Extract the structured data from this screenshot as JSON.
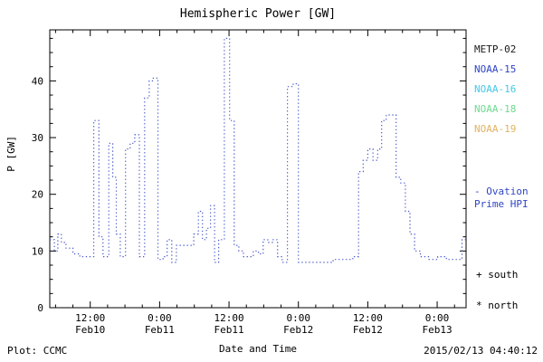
{
  "title": "Hemispheric Power [GW]",
  "axes": {
    "ylabel": "P [GW]",
    "xlabel": "Date and Time"
  },
  "footer": {
    "plot_credit": "Plot: CCMC",
    "timestamp": "2015/02/13 04:40:12"
  },
  "legend": {
    "satellites": [
      {
        "label": "METP-02",
        "color": "#1a1a1a"
      },
      {
        "label": "NOAA-15",
        "color": "#2f45c5"
      },
      {
        "label": "NOAA-16",
        "color": "#45c8e8"
      },
      {
        "label": "NOAA-18",
        "color": "#6fd98f"
      },
      {
        "label": "NOAA-19",
        "color": "#e2b263"
      }
    ],
    "line_label_line1": "- Ovation",
    "line_label_line2": "Prime HPI",
    "line_label_color": "#2f45c5",
    "markers": [
      {
        "symbol": "+",
        "label": "south"
      },
      {
        "symbol": "*",
        "label": "north"
      }
    ]
  },
  "chart_data": {
    "type": "line",
    "step": true,
    "line_style": "dotted",
    "line_color": "#4758c8",
    "title": "Hemispheric Power [GW]",
    "xlabel": "Date and Time",
    "ylabel": "P [GW]",
    "xlim_hours_since_feb10_0000": [
      5,
      77
    ],
    "ylim": [
      0,
      49
    ],
    "x_ticks": [
      {
        "hour": 12,
        "time": "12:00",
        "date": "Feb10"
      },
      {
        "hour": 24,
        "time": "0:00",
        "date": "Feb11"
      },
      {
        "hour": 36,
        "time": "12:00",
        "date": "Feb11"
      },
      {
        "hour": 48,
        "time": "0:00",
        "date": "Feb12"
      },
      {
        "hour": 60,
        "time": "12:00",
        "date": "Feb12"
      },
      {
        "hour": 72,
        "time": "0:00",
        "date": "Feb13"
      }
    ],
    "x_minor_step_hours": 3,
    "y_ticks": [
      0,
      10,
      20,
      30,
      40
    ],
    "y_minor_step": 2.5,
    "legend_position": "right",
    "grid": false,
    "series": [
      {
        "name": "Ovation Prime HPI",
        "points_hour_gw": [
          [
            5,
            12
          ],
          [
            5.8,
            10
          ],
          [
            6.4,
            13
          ],
          [
            7,
            11.5
          ],
          [
            7.8,
            10.5
          ],
          [
            9,
            9.5
          ],
          [
            10.2,
            9
          ],
          [
            12.6,
            33
          ],
          [
            13.5,
            12.5
          ],
          [
            14.2,
            9
          ],
          [
            15.2,
            29
          ],
          [
            15.9,
            23
          ],
          [
            16.5,
            13
          ],
          [
            17.2,
            9
          ],
          [
            18.1,
            28
          ],
          [
            18.9,
            29
          ],
          [
            19.7,
            30.5
          ],
          [
            20.5,
            9
          ],
          [
            21.4,
            37
          ],
          [
            22.2,
            40
          ],
          [
            22.9,
            40.5
          ],
          [
            23.7,
            8.5
          ],
          [
            24.6,
            9
          ],
          [
            25.3,
            12
          ],
          [
            26.1,
            8
          ],
          [
            26.9,
            11
          ],
          [
            28.4,
            11
          ],
          [
            29.9,
            13
          ],
          [
            30.7,
            17
          ],
          [
            31.4,
            12
          ],
          [
            32.1,
            14
          ],
          [
            32.8,
            18
          ],
          [
            33.5,
            8
          ],
          [
            34.2,
            12
          ],
          [
            35.2,
            47.5
          ],
          [
            36.1,
            33
          ],
          [
            36.9,
            11
          ],
          [
            37.7,
            10
          ],
          [
            38.5,
            9
          ],
          [
            39.4,
            9
          ],
          [
            40.2,
            10
          ],
          [
            41.1,
            9.5
          ],
          [
            41.9,
            12
          ],
          [
            42.7,
            11.5
          ],
          [
            43.5,
            12
          ],
          [
            44.4,
            9
          ],
          [
            45.2,
            8
          ],
          [
            46.1,
            39
          ],
          [
            47.1,
            39.5
          ],
          [
            48,
            8
          ],
          [
            50,
            8
          ],
          [
            52,
            8
          ],
          [
            54,
            8.5
          ],
          [
            56,
            8.5
          ],
          [
            57.4,
            9
          ],
          [
            58.4,
            24
          ],
          [
            59.2,
            26
          ],
          [
            60,
            28
          ],
          [
            60.9,
            26
          ],
          [
            61.7,
            28
          ],
          [
            62.4,
            33
          ],
          [
            63.2,
            34
          ],
          [
            64.1,
            34
          ],
          [
            64.9,
            23
          ],
          [
            65.7,
            22
          ],
          [
            66.5,
            17
          ],
          [
            67.3,
            13
          ],
          [
            68.1,
            10
          ],
          [
            69.1,
            9
          ],
          [
            70.6,
            8.5
          ],
          [
            72.1,
            9
          ],
          [
            73.6,
            8.5
          ],
          [
            75.1,
            8.5
          ],
          [
            76.3,
            12
          ],
          [
            77,
            12
          ]
        ]
      }
    ]
  }
}
